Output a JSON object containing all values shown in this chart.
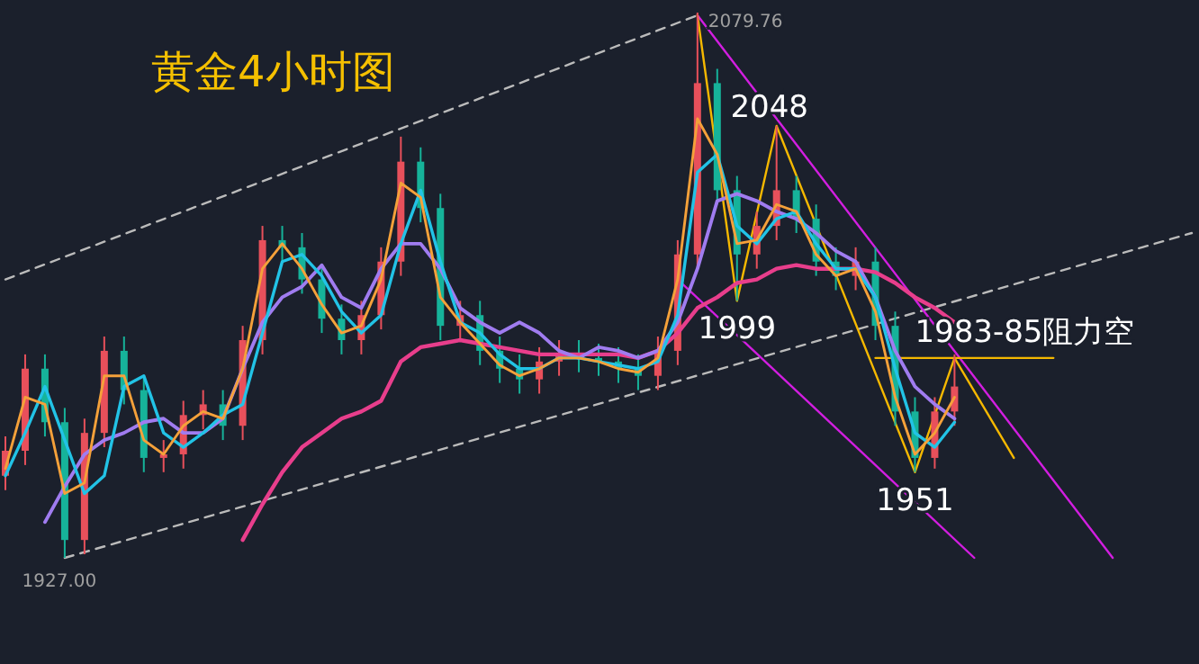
{
  "chart_data": {
    "type": "candlestick",
    "title": "黄金4小时图",
    "categories": [
      null,
      null,
      null,
      null,
      null,
      null,
      null,
      null,
      null,
      null,
      null,
      null,
      null,
      null,
      null,
      null,
      null,
      null,
      null,
      null,
      null,
      null,
      null,
      null,
      null,
      null,
      null,
      null,
      null,
      null,
      null,
      null,
      null,
      null,
      null,
      null,
      null,
      null,
      null,
      null,
      null,
      null,
      null,
      null,
      null,
      null,
      null,
      null,
      null,
      null,
      null,
      null,
      null,
      null,
      null,
      null,
      null,
      null,
      null,
      null,
      null
    ],
    "ohlc": [
      [
        1950,
        1961,
        1946,
        1957
      ],
      [
        1957,
        1984,
        1953,
        1980
      ],
      [
        1980,
        1984,
        1961,
        1965
      ],
      [
        1965,
        1969,
        1927,
        1932
      ],
      [
        1932,
        1966,
        1928,
        1962
      ],
      [
        1962,
        1989,
        1958,
        1985
      ],
      [
        1985,
        1989,
        1970,
        1974
      ],
      [
        1974,
        1978,
        1951,
        1955
      ],
      [
        1955,
        1960,
        1951,
        1956
      ],
      [
        1956,
        1971,
        1952,
        1967
      ],
      [
        1967,
        1974,
        1963,
        1970
      ],
      [
        1970,
        1974,
        1960,
        1964
      ],
      [
        1964,
        1992,
        1960,
        1988
      ],
      [
        1988,
        2020,
        1984,
        2016
      ],
      [
        2016,
        2020,
        2010,
        2014
      ],
      [
        2014,
        2018,
        2001,
        2005
      ],
      [
        2005,
        2009,
        1990,
        1994
      ],
      [
        1994,
        1998,
        1984,
        1988
      ],
      [
        1988,
        1999,
        1984,
        1995
      ],
      [
        1995,
        2014,
        1991,
        2010
      ],
      [
        2010,
        2045,
        2006,
        2038
      ],
      [
        2038,
        2042,
        2021,
        2025
      ],
      [
        2025,
        2029,
        1988,
        1992
      ],
      [
        1992,
        1999,
        1988,
        1995
      ],
      [
        1995,
        1999,
        1981,
        1985
      ],
      [
        1985,
        1989,
        1976,
        1980
      ],
      [
        1980,
        1984,
        1973,
        1977
      ],
      [
        1977,
        1986,
        1973,
        1982
      ],
      [
        1982,
        1988,
        1978,
        1984
      ],
      [
        1984,
        1988,
        1979,
        1983
      ],
      [
        1983,
        1987,
        1978,
        1982
      ],
      [
        1982,
        1986,
        1976,
        1980
      ],
      [
        1980,
        1984,
        1974,
        1978
      ],
      [
        1978,
        1989,
        1974,
        1985
      ],
      [
        1985,
        2016,
        1981,
        2012
      ],
      [
        2012,
        2079.76,
        2008,
        2060
      ],
      [
        2060,
        2064,
        2026,
        2030
      ],
      [
        2030,
        2034,
        1999,
        2012
      ],
      [
        2012,
        2024,
        2008,
        2020
      ],
      [
        2020,
        2048,
        2016,
        2030
      ],
      [
        2030,
        2034,
        2018,
        2022
      ],
      [
        2022,
        2026,
        2006,
        2010
      ],
      [
        2010,
        2014,
        2002,
        2006
      ],
      [
        2006,
        2014,
        2002,
        2010
      ],
      [
        2010,
        2014,
        1988,
        1992
      ],
      [
        1992,
        1996,
        1964,
        1968
      ],
      [
        1968,
        1972,
        1951,
        1955
      ],
      [
        1955,
        1972,
        1952,
        1968
      ],
      [
        1968,
        1984,
        1964,
        1975
      ],
      null,
      null,
      null,
      null,
      null,
      null,
      null,
      null,
      null,
      null,
      null,
      null
    ],
    "series": [
      {
        "type": "line",
        "color": "#e83e8c",
        "values": [
          null,
          null,
          null,
          null,
          null,
          null,
          null,
          null,
          null,
          null,
          null,
          null,
          1932,
          1942,
          1951,
          1958,
          1962,
          1966,
          1968,
          1971,
          1982,
          1986,
          1987,
          1988,
          1987,
          1986,
          1985,
          1984,
          1984,
          1984,
          1984,
          1984,
          1983,
          1985,
          1990,
          1997,
          2000,
          2004,
          2005,
          2008,
          2009,
          2008,
          2008,
          2008,
          2007,
          2004,
          2000,
          1997,
          1993,
          null,
          null,
          null,
          null,
          null,
          null,
          null,
          null,
          null,
          null,
          null,
          null
        ]
      },
      {
        "type": "line",
        "color": "#a07cf0",
        "values": [
          null,
          null,
          1937,
          1947,
          1956,
          1960,
          1962,
          1965,
          1966,
          1962,
          1962,
          1966,
          1980,
          1993,
          2000,
          2003,
          2009,
          2000,
          1997,
          2008,
          2015,
          2015,
          2008,
          1997,
          1993,
          1990,
          1993,
          1990,
          1985,
          1983,
          1986,
          1985,
          1983,
          1985,
          1993,
          2008,
          2027,
          2029,
          2027,
          2024,
          2022,
          2018,
          2013,
          2010,
          2000,
          1985,
          1975,
          1970,
          1966,
          null,
          null,
          null,
          null,
          null,
          null,
          null,
          null,
          null,
          null,
          null,
          null
        ]
      },
      {
        "type": "line",
        "color": "#22c3e6",
        "values": [
          1950,
          1962,
          1975,
          1960,
          1945,
          1950,
          1975,
          1978,
          1962,
          1958,
          1962,
          1967,
          1970,
          1990,
          2010,
          2012,
          2006,
          1996,
          1990,
          1995,
          2015,
          2030,
          2010,
          1993,
          1990,
          1984,
          1980,
          1980,
          1983,
          1983,
          1982,
          1981,
          1980,
          1982,
          1995,
          2035,
          2040,
          2020,
          2015,
          2022,
          2024,
          2015,
          2008,
          2008,
          2000,
          1980,
          1962,
          1958,
          1965,
          null,
          null,
          null,
          null,
          null,
          null,
          null,
          null,
          null,
          null,
          null,
          null
        ]
      },
      {
        "type": "line",
        "color": "#f5a13a",
        "values": [
          1952,
          1972,
          1970,
          1945,
          1948,
          1978,
          1978,
          1960,
          1956,
          1964,
          1968,
          1966,
          1980,
          2008,
          2015,
          2008,
          1998,
          1990,
          1992,
          2005,
          2032,
          2028,
          2000,
          1993,
          1987,
          1981,
          1978,
          1980,
          1983,
          1983,
          1982,
          1980,
          1979,
          1983,
          2005,
          2050,
          2040,
          2015,
          2016,
          2026,
          2024,
          2012,
          2006,
          2008,
          1996,
          1972,
          1956,
          1962,
          1972,
          null,
          null,
          null,
          null,
          null,
          null,
          null,
          null,
          null,
          null,
          null,
          null
        ]
      },
      {
        "type": "line",
        "color": "#bbbbbb",
        "line_style": "dashed",
        "values": [
          2005,
          null,
          null,
          null,
          null,
          null,
          null,
          null,
          null,
          null,
          null,
          null,
          null,
          null,
          null,
          null,
          null,
          null,
          null,
          null,
          null,
          null,
          null,
          null,
          null,
          null,
          null,
          null,
          null,
          null,
          null,
          null,
          null,
          null,
          null,
          2079,
          null,
          null,
          null,
          null,
          null,
          null,
          null,
          null,
          null,
          null,
          null,
          null,
          null,
          null,
          null,
          null,
          null,
          null,
          null,
          null,
          null,
          null,
          null,
          null,
          null
        ]
      },
      {
        "type": "line",
        "color": "#bbbbbb",
        "line_style": "dashed",
        "values": [
          null,
          null,
          null,
          1927,
          null,
          null,
          null,
          null,
          null,
          null,
          null,
          null,
          null,
          null,
          null,
          null,
          null,
          null,
          null,
          null,
          null,
          null,
          null,
          null,
          null,
          null,
          null,
          null,
          null,
          null,
          null,
          null,
          null,
          null,
          null,
          null,
          null,
          null,
          null,
          null,
          null,
          null,
          null,
          null,
          null,
          null,
          null,
          null,
          null,
          null,
          null,
          null,
          null,
          null,
          null,
          null,
          null,
          null,
          null,
          null,
          2018
        ]
      },
      {
        "type": "line",
        "color": "#d21ee0",
        "values": [
          null,
          null,
          null,
          null,
          null,
          null,
          null,
          null,
          null,
          null,
          null,
          null,
          null,
          null,
          null,
          null,
          null,
          null,
          null,
          null,
          null,
          null,
          null,
          null,
          null,
          null,
          null,
          null,
          null,
          null,
          null,
          null,
          null,
          null,
          null,
          2079,
          null,
          null,
          null,
          null,
          null,
          null,
          null,
          null,
          null,
          null,
          null,
          null,
          null,
          null,
          null,
          null,
          null,
          null,
          null,
          null,
          1927,
          null,
          null,
          null,
          null
        ]
      },
      {
        "type": "line",
        "color": "#d21ee0",
        "values": [
          null,
          null,
          null,
          null,
          null,
          null,
          null,
          null,
          null,
          null,
          null,
          null,
          null,
          null,
          null,
          null,
          null,
          null,
          null,
          null,
          null,
          null,
          null,
          null,
          null,
          null,
          null,
          null,
          null,
          null,
          null,
          null,
          null,
          null,
          2005,
          null,
          null,
          null,
          null,
          null,
          null,
          null,
          null,
          null,
          null,
          null,
          null,
          null,
          null,
          1927,
          null,
          null,
          null,
          null,
          null,
          null,
          null,
          null,
          null,
          null,
          null
        ]
      },
      {
        "type": "line",
        "color": "#f5b800",
        "values": [
          null,
          null,
          null,
          null,
          null,
          null,
          null,
          null,
          null,
          null,
          null,
          null,
          null,
          null,
          null,
          null,
          null,
          null,
          null,
          null,
          null,
          null,
          null,
          null,
          null,
          null,
          null,
          null,
          null,
          null,
          null,
          null,
          null,
          null,
          null,
          2079,
          null,
          1999,
          null,
          2048,
          null,
          null,
          null,
          null,
          null,
          null,
          1951,
          null,
          1983,
          null,
          null,
          1955,
          null,
          null,
          null,
          null,
          null,
          null,
          null,
          null,
          null
        ]
      },
      {
        "type": "line",
        "color": "#f5b800",
        "values": [
          null,
          null,
          null,
          null,
          null,
          null,
          null,
          null,
          null,
          null,
          null,
          null,
          null,
          null,
          null,
          null,
          null,
          null,
          null,
          null,
          null,
          null,
          null,
          null,
          null,
          null,
          null,
          null,
          null,
          null,
          null,
          null,
          null,
          null,
          null,
          null,
          null,
          null,
          null,
          null,
          null,
          null,
          null,
          null,
          1983,
          null,
          null,
          null,
          null,
          null,
          null,
          null,
          null,
          1983,
          null,
          null,
          null,
          null,
          null,
          null,
          null
        ]
      }
    ],
    "annotations": [
      "2079.76",
      {
        "text": "1927.00",
        "y": 1927
      },
      {
        "text": "2048",
        "y": 2048
      },
      {
        "text": "1999",
        "y": 1999
      },
      {
        "text": "1951",
        "y": 1951
      },
      {
        "text": "1983-85阻力空",
        "y": 1983
      }
    ]
  }
}
